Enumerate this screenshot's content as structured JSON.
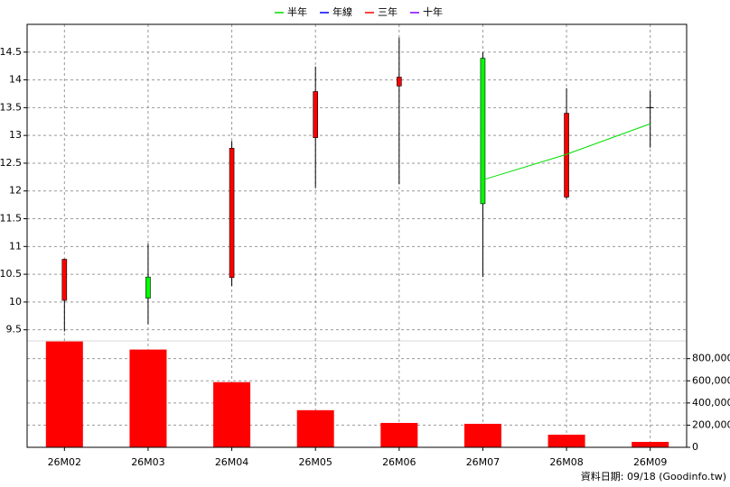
{
  "chart_data": [
    {
      "type": "candlestick",
      "categories": [
        "26M02",
        "26M03",
        "26M04",
        "26M05",
        "26M06",
        "26M07",
        "26M08",
        "26M09"
      ],
      "open": [
        10.03,
        10.45,
        10.44,
        12.96,
        13.89,
        14.39,
        11.89,
        13.5
      ],
      "high": [
        10.78,
        11.05,
        12.9,
        14.24,
        14.76,
        14.5,
        13.85,
        13.8
      ],
      "low": [
        9.47,
        9.6,
        10.29,
        12.06,
        12.12,
        10.45,
        11.86,
        12.78
      ],
      "close": [
        10.77,
        10.07,
        12.77,
        13.79,
        14.05,
        11.77,
        13.4,
        13.5
      ],
      "up_color": "#ff0000",
      "down_color": "#00ff00",
      "flat_color": "#000000",
      "series": [
        {
          "name": "半年",
          "color": "#00dd00",
          "values": [
            null,
            null,
            null,
            null,
            null,
            12.2,
            12.66,
            13.21
          ]
        },
        {
          "name": "年線",
          "color": "#0000ff",
          "values": [
            null,
            null,
            null,
            null,
            null,
            null,
            null,
            null
          ]
        },
        {
          "name": "三年",
          "color": "#ff0000",
          "values": [
            null,
            null,
            null,
            null,
            null,
            null,
            null,
            null
          ]
        },
        {
          "name": "十年",
          "color": "#8000ff",
          "values": [
            null,
            null,
            null,
            null,
            null,
            null,
            null,
            null
          ]
        }
      ],
      "ylim": [
        9.3,
        15.0
      ],
      "yticks": [
        9.5,
        10,
        10.5,
        11,
        11.5,
        12,
        12.5,
        13,
        13.5,
        14,
        14.5
      ],
      "grid": true,
      "legend": "top",
      "note": "資料日期: 09/18  (Goodinfo.tw)"
    },
    {
      "type": "bar",
      "values": [
        955000,
        882000,
        588000,
        335000,
        220000,
        212000,
        114000,
        49000
      ],
      "color": "#ff0000",
      "ylim": [
        0,
        960000
      ],
      "yticks": [
        0,
        {
          "value": 200000,
          "label": "200,000"
        },
        {
          "value": 400000,
          "label": "400,000"
        },
        {
          "value": 600000,
          "label": "600,000"
        },
        {
          "value": 800000,
          "label": "800,000"
        }
      ],
      "grid": true
    }
  ]
}
